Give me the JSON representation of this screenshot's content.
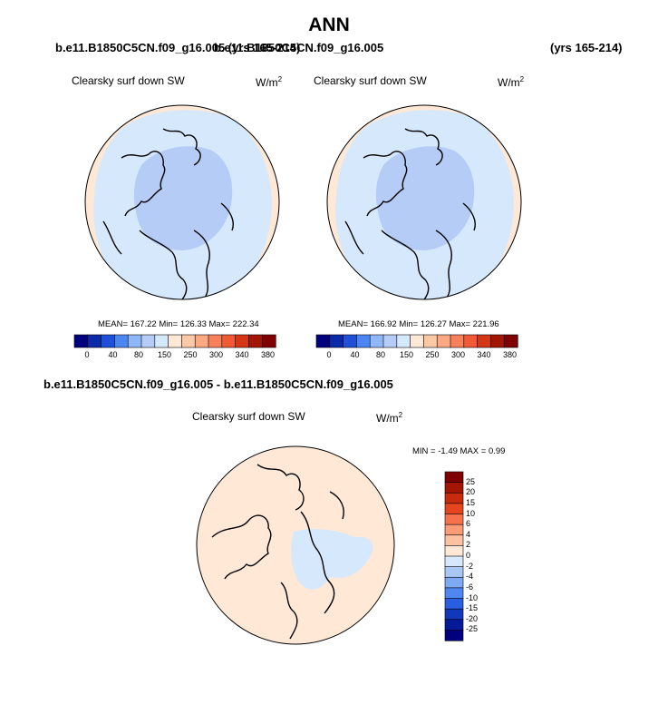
{
  "main_title": "ANN",
  "top_left_case": "b.e11.B1850C5CN.f09_g16.005 (yrs 165-214)",
  "top_right_case": "b.e11.B1850C5CN.f09_g16.005",
  "top_right_years": "(yrs 165-214)",
  "diff_case": "b.e11.B1850C5CN.f09_g16.005 - b.e11.B1850C5CN.f09_g16.005",
  "colors": {
    "land": "#000000",
    "ocean_bg": "#ffe8d6",
    "band_low": "#d6e8fc",
    "band_mid": "#b4ccf6",
    "diff_neg": "#d6e8fc",
    "diff_pos": "#ffe8d6"
  },
  "chart_data": [
    {
      "type": "heatmap",
      "title": "Clearsky surf down SW",
      "units_base": "W/m",
      "units_exp": "2",
      "stats": "MEAN= 167.22  Min= 126.33  Max= 222.34",
      "colorbar": {
        "levels": [
          "0",
          "40",
          "80",
          "150",
          "250",
          "300",
          "340",
          "380"
        ],
        "colors": [
          "#00007f",
          "#0a2aa8",
          "#1e50d8",
          "#4d86f2",
          "#8fb6f7",
          "#b4ccf6",
          "#d6e8fc",
          "#ffe8d6",
          "#fcc9a6",
          "#fba983",
          "#f7815c",
          "#f05a34",
          "#d53616",
          "#a31603",
          "#7f0000"
        ]
      }
    },
    {
      "type": "heatmap",
      "title": "Clearsky surf down SW",
      "units_base": "W/m",
      "units_exp": "2",
      "stats": "MEAN= 166.92  Min= 126.27  Max= 221.96",
      "colorbar": {
        "levels": [
          "0",
          "40",
          "80",
          "150",
          "250",
          "300",
          "340",
          "380"
        ],
        "colors": [
          "#00007f",
          "#0a2aa8",
          "#1e50d8",
          "#4d86f2",
          "#8fb6f7",
          "#b4ccf6",
          "#d6e8fc",
          "#ffe8d6",
          "#fcc9a6",
          "#fba983",
          "#f7815c",
          "#f05a34",
          "#d53616",
          "#a31603",
          "#7f0000"
        ]
      }
    },
    {
      "type": "heatmap",
      "title": "Clearsky surf down SW",
      "units_base": "W/m",
      "units_exp": "2",
      "min_max": "MIN =  -1.49 MAX =   0.99",
      "colorbar": {
        "levels": [
          "25",
          "20",
          "15",
          "10",
          "6",
          "4",
          "2",
          "0",
          "-2",
          "-4",
          "-6",
          "-10",
          "-15",
          "-20",
          "-25"
        ],
        "colors": [
          "#7f0000",
          "#a31603",
          "#c82a0e",
          "#e6461f",
          "#f7714c",
          "#fb9b77",
          "#fcc2a2",
          "#ffe8d6",
          "#d6e8fc",
          "#a9c8f6",
          "#7eaaf4",
          "#4f86f0",
          "#2a5ee0",
          "#1237b8",
          "#041a96",
          "#00007f"
        ]
      }
    }
  ]
}
